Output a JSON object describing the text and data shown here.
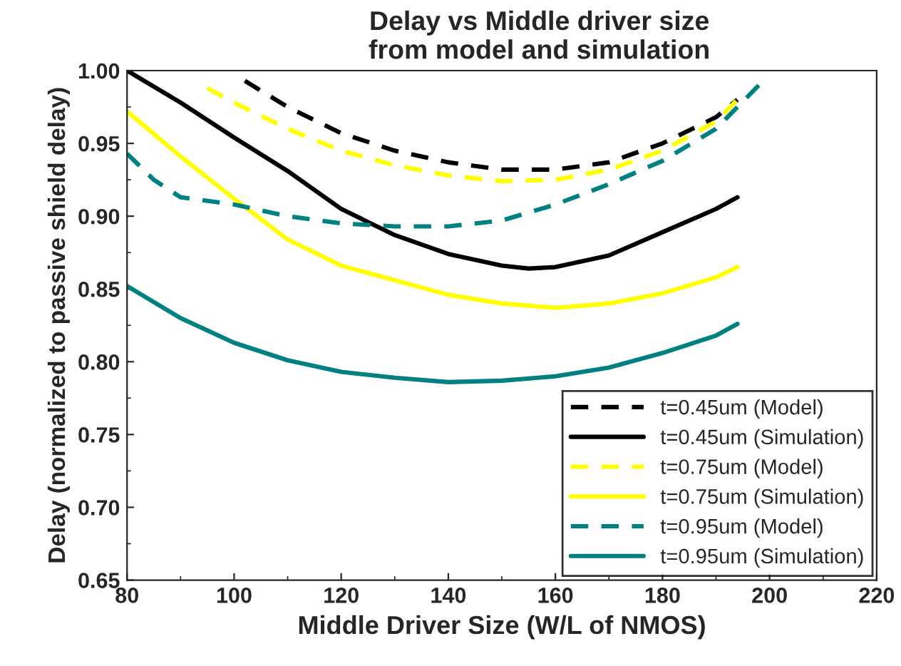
{
  "chart_data": {
    "type": "line",
    "title": "Delay vs Middle driver size\nfrom model and simulation",
    "xlabel": "Middle Driver Size (W/L of NMOS)",
    "ylabel": "Delay (normalized to passive shield delay)",
    "xlim": [
      80,
      220
    ],
    "xticks": [
      80,
      100,
      120,
      140,
      160,
      180,
      200,
      220
    ],
    "ylim": [
      0.65,
      1.0
    ],
    "yticks": [
      {
        "value": 0.65,
        "label": "0.65"
      },
      {
        "value": 0.7,
        "label": "0.70"
      },
      {
        "value": 0.75,
        "label": "0.75"
      },
      {
        "value": 0.8,
        "label": "0.80"
      },
      {
        "value": 0.85,
        "label": "0.85"
      },
      {
        "value": 0.9,
        "label": "0.90"
      },
      {
        "value": 0.95,
        "label": "0.95"
      },
      {
        "value": 1.0,
        "label": "1.00"
      }
    ],
    "grid": false,
    "legend": "bottom right",
    "marker": "none",
    "series": [
      {
        "name": "t=0.45um (Model)",
        "color": "#000000",
        "line_style": "dashed",
        "x": [
          102,
          110,
          120,
          130,
          140,
          150,
          160,
          170,
          180,
          190,
          194
        ],
        "values": [
          0.993,
          0.975,
          0.957,
          0.945,
          0.937,
          0.932,
          0.932,
          0.937,
          0.95,
          0.968,
          0.98
        ]
      },
      {
        "name": "t=0.45um (Simulation)",
        "color": "#000000",
        "line_style": "solid",
        "x": [
          80,
          90,
          100,
          110,
          120,
          130,
          140,
          150,
          155,
          160,
          170,
          180,
          190,
          194
        ],
        "values": [
          1.0,
          0.978,
          0.954,
          0.931,
          0.905,
          0.887,
          0.874,
          0.866,
          0.864,
          0.865,
          0.873,
          0.889,
          0.905,
          0.913
        ]
      },
      {
        "name": "t=0.75um (Model)",
        "color": "#ffff00",
        "line_style": "dashed",
        "x": [
          95,
          100,
          110,
          120,
          130,
          140,
          150,
          160,
          170,
          180,
          190,
          194
        ],
        "values": [
          0.988,
          0.978,
          0.96,
          0.945,
          0.935,
          0.928,
          0.924,
          0.925,
          0.932,
          0.945,
          0.965,
          0.98
        ]
      },
      {
        "name": "t=0.75um (Simulation)",
        "color": "#ffff00",
        "line_style": "solid",
        "x": [
          80,
          90,
          100,
          110,
          120,
          130,
          140,
          150,
          160,
          170,
          180,
          190,
          194
        ],
        "values": [
          0.972,
          0.941,
          0.912,
          0.884,
          0.866,
          0.856,
          0.846,
          0.84,
          0.837,
          0.84,
          0.847,
          0.858,
          0.865
        ]
      },
      {
        "name": "t=0.95um (Model)",
        "color": "#008080",
        "line_style": "dashed",
        "x": [
          80,
          85,
          90,
          100,
          110,
          120,
          130,
          140,
          150,
          160,
          170,
          180,
          190,
          198
        ],
        "values": [
          0.943,
          0.925,
          0.913,
          0.908,
          0.9,
          0.895,
          0.893,
          0.893,
          0.897,
          0.908,
          0.922,
          0.938,
          0.96,
          0.99
        ]
      },
      {
        "name": "t=0.95um (Simulation)",
        "color": "#008080",
        "line_style": "solid",
        "x": [
          80,
          90,
          100,
          110,
          120,
          130,
          140,
          150,
          160,
          170,
          180,
          190,
          194
        ],
        "values": [
          0.852,
          0.83,
          0.813,
          0.801,
          0.793,
          0.789,
          0.786,
          0.787,
          0.79,
          0.796,
          0.806,
          0.818,
          0.826
        ]
      }
    ]
  }
}
